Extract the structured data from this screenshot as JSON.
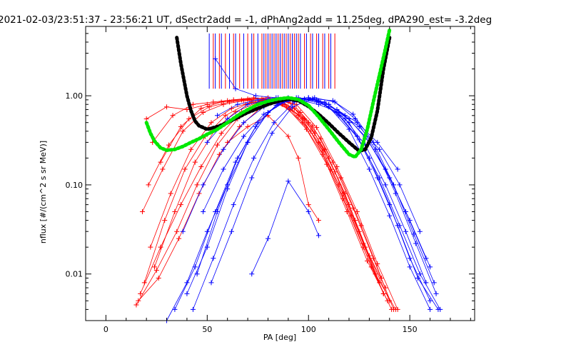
{
  "chart_data": {
    "type": "scatter",
    "title": "2021-02-03/23:51:37 - 23:56:21 UT, dSectr2add = -1, dPhAng2add = 11.25deg, dPA290_est=  -3.2deg",
    "xlabel": "PA [deg]",
    "ylabel": "nflux [#/(cm^2 s sr MeV)]",
    "xlim": [
      -10,
      182
    ],
    "ylim": [
      0.003,
      6.0
    ],
    "yscale": "log",
    "grid": false,
    "x_ticks": [
      {
        "value": 0,
        "label": "0"
      },
      {
        "value": 50,
        "label": "50"
      },
      {
        "value": 100,
        "label": "100"
      },
      {
        "value": 150,
        "label": "150"
      }
    ],
    "y_ticks": [
      {
        "value": 0.01,
        "label": "0.01"
      },
      {
        "value": 0.1,
        "label": "0.10"
      },
      {
        "value": 1.0,
        "label": "1.00"
      }
    ],
    "colors": {
      "series_a": "#ff0000",
      "series_b": "#0000ff",
      "fit_black": "#000000",
      "fit_green": "#00e800"
    },
    "fit_curves": [
      {
        "color": "#000000",
        "x": [
          35,
          37,
          40,
          42,
          44,
          46,
          50,
          55,
          60,
          65,
          70,
          75,
          80,
          85,
          90,
          95,
          100,
          105,
          110,
          115,
          120,
          125,
          128,
          131,
          134,
          137,
          140
        ],
        "y": [
          4.5,
          2.3,
          1.0,
          0.68,
          0.52,
          0.46,
          0.42,
          0.45,
          0.5,
          0.57,
          0.65,
          0.72,
          0.8,
          0.87,
          0.92,
          0.88,
          0.76,
          0.62,
          0.49,
          0.38,
          0.3,
          0.24,
          0.25,
          0.34,
          0.68,
          2.0,
          4.5
        ]
      },
      {
        "color": "#00e800",
        "x": [
          20,
          22,
          24,
          27,
          30,
          34,
          38,
          42,
          46,
          50,
          55,
          60,
          65,
          70,
          75,
          80,
          85,
          90,
          95,
          100,
          105,
          110,
          115,
          120,
          123,
          126,
          129,
          132,
          135,
          138,
          140
        ],
        "y": [
          0.5,
          0.38,
          0.31,
          0.26,
          0.245,
          0.25,
          0.27,
          0.3,
          0.33,
          0.37,
          0.42,
          0.5,
          0.6,
          0.7,
          0.8,
          0.87,
          0.92,
          0.95,
          0.91,
          0.78,
          0.58,
          0.42,
          0.3,
          0.22,
          0.205,
          0.25,
          0.42,
          0.86,
          1.7,
          3.4,
          5.5
        ]
      }
    ],
    "spikes": {
      "red_x": [
        53,
        56,
        59,
        63,
        66,
        70,
        73,
        77,
        79,
        81,
        83,
        85,
        87,
        89,
        91,
        93,
        95,
        98,
        101,
        104,
        107,
        110,
        113
      ],
      "blue_x": [
        51,
        54,
        57,
        61,
        64,
        68,
        72,
        75,
        78,
        80,
        82,
        84,
        86,
        88,
        90,
        92,
        94,
        96,
        99,
        102,
        105,
        108,
        111
      ],
      "y_from": 1.2,
      "y_to": 5.0
    },
    "series": [
      {
        "color": "#ff0000",
        "profiles": [
          {
            "x": [
              15,
              25,
              35,
              45,
              55,
              65,
              75,
              85,
              95,
              105,
              115,
              125,
              135
            ],
            "y": [
              0.0045,
              0.011,
              0.03,
              0.1,
              0.28,
              0.55,
              0.8,
              0.9,
              0.6,
              0.3,
              0.1,
              0.03,
              0.008
            ]
          },
          {
            "x": [
              17,
              27,
              37,
              47,
              57,
              67,
              77,
              87,
              97,
              107,
              117,
              127,
              137
            ],
            "y": [
              0.006,
              0.02,
              0.06,
              0.16,
              0.38,
              0.66,
              0.86,
              0.8,
              0.5,
              0.22,
              0.07,
              0.02,
              0.006
            ]
          },
          {
            "x": [
              19,
              29,
              39,
              49,
              59,
              69,
              79,
              89,
              99,
              109,
              119,
              129,
              139
            ],
            "y": [
              0.008,
              0.04,
              0.15,
              0.35,
              0.6,
              0.8,
              0.92,
              0.75,
              0.42,
              0.17,
              0.05,
              0.014,
              0.005
            ]
          },
          {
            "x": [
              21,
              31,
              41,
              51,
              61,
              71,
              81,
              91,
              101,
              111,
              121,
              131,
              141
            ],
            "y": [
              0.1,
              0.28,
              0.55,
              0.75,
              0.85,
              0.9,
              0.88,
              0.7,
              0.4,
              0.15,
              0.045,
              0.012,
              0.004
            ]
          },
          {
            "x": [
              23,
              33,
              43,
              53,
              63,
              73,
              83,
              93,
              103,
              113,
              123,
              133,
              143
            ],
            "y": [
              0.3,
              0.6,
              0.8,
              0.85,
              0.9,
              0.95,
              0.9,
              0.72,
              0.38,
              0.14,
              0.04,
              0.01,
              0.004
            ]
          },
          {
            "x": [
              20,
              30,
              40,
              50,
              60,
              70,
              80,
              90,
              100,
              110,
              120,
              130,
              140
            ],
            "y": [
              0.55,
              0.75,
              0.7,
              0.8,
              0.88,
              0.92,
              0.95,
              0.85,
              0.5,
              0.2,
              0.06,
              0.016,
              0.005
            ]
          },
          {
            "x": [
              18,
              28,
              38,
              48,
              58,
              68,
              78,
              88,
              98,
              108,
              118,
              128,
              138
            ],
            "y": [
              0.05,
              0.15,
              0.4,
              0.65,
              0.8,
              0.88,
              0.9,
              0.8,
              0.55,
              0.25,
              0.08,
              0.02,
              0.007
            ]
          },
          {
            "x": [
              22,
              32,
              42,
              52,
              62,
              72,
              82,
              92,
              102,
              112,
              122,
              132,
              142
            ],
            "y": [
              0.02,
              0.08,
              0.25,
              0.5,
              0.72,
              0.85,
              0.9,
              0.82,
              0.46,
              0.18,
              0.055,
              0.015,
              0.004
            ]
          },
          {
            "x": [
              24,
              34,
              44,
              54,
              64,
              74,
              84,
              94,
              104,
              114,
              124,
              134,
              144
            ],
            "y": [
              0.012,
              0.05,
              0.18,
              0.42,
              0.66,
              0.83,
              0.92,
              0.8,
              0.44,
              0.16,
              0.05,
              0.013,
              0.004
            ]
          },
          {
            "x": [
              16,
              26,
              36,
              46,
              56,
              66,
              76,
              86,
              96,
              106,
              116,
              126,
              136
            ],
            "y": [
              0.005,
              0.009,
              0.025,
              0.08,
              0.22,
              0.45,
              0.72,
              0.88,
              0.65,
              0.33,
              0.12,
              0.035,
              0.009
            ]
          },
          {
            "x": [
              60,
              70,
              80,
              90,
              95,
              100,
              105
            ],
            "y": [
              0.3,
              0.45,
              0.6,
              0.35,
              0.2,
              0.06,
              0.04
            ]
          },
          {
            "x": [
              27,
              37,
              47,
              57,
              67,
              77,
              87,
              97,
              107,
              117,
              127,
              137
            ],
            "y": [
              0.18,
              0.45,
              0.72,
              0.85,
              0.9,
              0.93,
              0.88,
              0.55,
              0.24,
              0.08,
              0.022,
              0.006
            ]
          }
        ]
      },
      {
        "color": "#0000ff",
        "profiles": [
          {
            "x": [
              30,
              40,
              50,
              60,
              70,
              80,
              90,
              100,
              110,
              120,
              130,
              140,
              150,
              160
            ],
            "y": [
              0.003,
              0.008,
              0.03,
              0.1,
              0.3,
              0.65,
              0.9,
              0.95,
              0.8,
              0.5,
              0.2,
              0.06,
              0.015,
              0.005
            ]
          },
          {
            "x": [
              34,
              44,
              54,
              64,
              74,
              84,
              94,
              104,
              114,
              124,
              134,
              144,
              154,
              164
            ],
            "y": [
              0.004,
              0.012,
              0.05,
              0.18,
              0.45,
              0.78,
              0.95,
              0.9,
              0.65,
              0.35,
              0.12,
              0.035,
              0.009,
              0.004
            ]
          },
          {
            "x": [
              40,
              50,
              60,
              70,
              80,
              90,
              100,
              110,
              120,
              130,
              140,
              150,
              160
            ],
            "y": [
              0.006,
              0.02,
              0.09,
              0.3,
              0.65,
              0.92,
              0.95,
              0.75,
              0.42,
              0.15,
              0.045,
              0.012,
              0.004
            ]
          },
          {
            "x": [
              45,
              55,
              65,
              75,
              85,
              95,
              105,
              115,
              125,
              135,
              145,
              155,
              165
            ],
            "y": [
              0.01,
              0.05,
              0.2,
              0.5,
              0.82,
              0.95,
              0.88,
              0.6,
              0.32,
              0.12,
              0.035,
              0.01,
              0.004
            ]
          },
          {
            "x": [
              38,
              48,
              58,
              68,
              78,
              88,
              98,
              108,
              118,
              128,
              138,
              148,
              158
            ],
            "y": [
              0.03,
              0.1,
              0.25,
              0.5,
              0.75,
              0.9,
              0.92,
              0.8,
              0.55,
              0.28,
              0.1,
              0.03,
              0.008
            ]
          },
          {
            "x": [
              50,
              60,
              70,
              80,
              90,
              100,
              110,
              120,
              130,
              140,
              150,
              160
            ],
            "y": [
              0.3,
              0.55,
              0.8,
              0.9,
              0.95,
              0.92,
              0.8,
              0.55,
              0.3,
              0.12,
              0.04,
              0.012
            ]
          },
          {
            "x": [
              43,
              53,
              63,
              73,
              83,
              93,
              103,
              113,
              123,
              133,
              143,
              153,
              163
            ],
            "y": [
              0.004,
              0.015,
              0.06,
              0.2,
              0.5,
              0.85,
              0.95,
              0.85,
              0.55,
              0.25,
              0.08,
              0.022,
              0.006
            ]
          },
          {
            "x": [
              55,
              65,
              75,
              85,
              95,
              105,
              115,
              125,
              135,
              145,
              155
            ],
            "y": [
              0.6,
              0.8,
              0.9,
              0.95,
              0.9,
              0.8,
              0.65,
              0.45,
              0.25,
              0.1,
              0.03
            ]
          },
          {
            "x": [
              48,
              58,
              68,
              78,
              88,
              98,
              108,
              118,
              128,
              138,
              148,
              158
            ],
            "y": [
              0.05,
              0.15,
              0.35,
              0.62,
              0.85,
              0.92,
              0.85,
              0.6,
              0.35,
              0.15,
              0.05,
              0.015
            ]
          },
          {
            "x": [
              72,
              80,
              90,
              100,
              105
            ],
            "y": [
              0.01,
              0.025,
              0.11,
              0.05,
              0.027
            ]
          },
          {
            "x": [
              52,
              62,
              72,
              82,
              92,
              102,
              112,
              122,
              132,
              142,
              152,
              162
            ],
            "y": [
              0.008,
              0.03,
              0.12,
              0.38,
              0.75,
              0.93,
              0.88,
              0.62,
              0.3,
              0.1,
              0.028,
              0.008
            ]
          },
          {
            "x": [
              54,
              64,
              74,
              84,
              94,
              104,
              114,
              124,
              134,
              144
            ],
            "y": [
              2.6,
              1.2,
              1.0,
              0.95,
              0.92,
              0.85,
              0.7,
              0.5,
              0.3,
              0.15
            ]
          }
        ]
      }
    ]
  }
}
